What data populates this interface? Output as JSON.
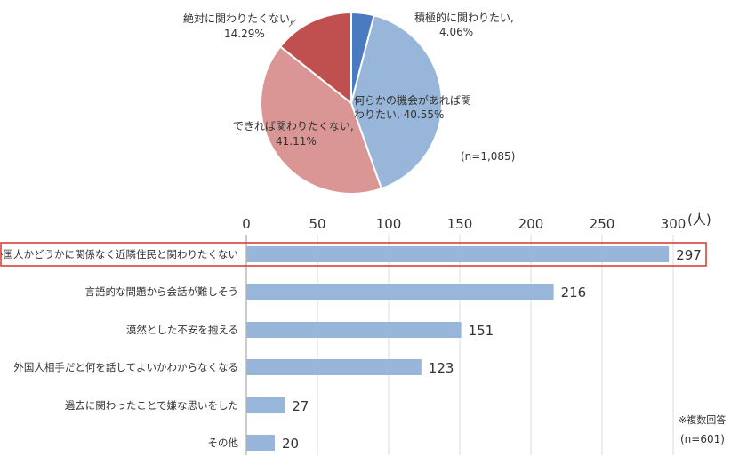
{
  "chart_data": [
    {
      "type": "pie",
      "n_note": "(n=1,085)",
      "slices": [
        {
          "label": "積極的に関わりたい,",
          "value_label": "4.06%",
          "value": 4.06,
          "color": "#4a7ac0"
        },
        {
          "label": "何らかの機会があれば関",
          "label2": "わりたい, 40.55%",
          "value": 40.55,
          "color": "#98b6da"
        },
        {
          "label": "できれば関わりたくない,",
          "value_label": "41.11%",
          "value": 41.11,
          "color": "#d99694"
        },
        {
          "label": "絶対に関わりたくない,",
          "value_label": "14.29%",
          "value": 14.29,
          "color": "#c05050"
        }
      ]
    },
    {
      "type": "bar",
      "orientation": "horizontal",
      "unit": "(人)",
      "xlim": [
        0,
        300
      ],
      "ticks": [
        0,
        50,
        100,
        150,
        200,
        250,
        300
      ],
      "tick_labels": [
        "0",
        "50",
        "100",
        "150",
        "200",
        "250",
        "300"
      ],
      "grid": true,
      "categories": [
        "外国人かどうかに関係なく近隣住民と関わりたくない",
        "言語的な問題から会話が難しそう",
        "漠然とした不安を抱える",
        "外国人相手だと何を話してよいかわからなくなる",
        "過去に関わったことで嫌な思いをした",
        "その他"
      ],
      "values": [
        297,
        216,
        151,
        123,
        27,
        20
      ],
      "value_labels": [
        "297",
        "216",
        "151",
        "123",
        "27",
        "20"
      ],
      "bar_color": "#98b6da",
      "highlight_index": 0,
      "highlight_color": "#d9342b",
      "note_line1": "※複数回答",
      "note_line2": "(n=601)"
    }
  ]
}
